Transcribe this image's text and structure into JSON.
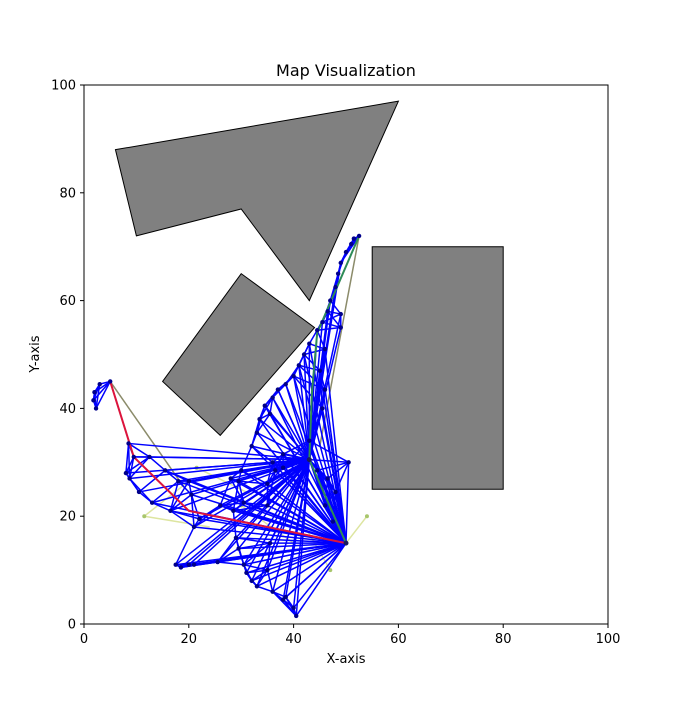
{
  "chart_data": {
    "type": "scatter",
    "title": "Map Visualization",
    "xlabel": "X-axis",
    "ylabel": "Y-axis",
    "xlim": [
      0,
      100
    ],
    "ylim": [
      0,
      100
    ],
    "xticks": [
      "0",
      "20",
      "40",
      "60",
      "80",
      "100"
    ],
    "yticks": [
      "0",
      "20",
      "40",
      "60",
      "80",
      "100"
    ],
    "grid": false,
    "colors": {
      "obstacle_fill": "#808080",
      "obstacle_edge": "#000000",
      "tree_edge": "#0000ff",
      "tree_node": "#00008b",
      "path_a": "#dc143c",
      "path_b": "#2e8b57",
      "faint_edge": "#dde5a0",
      "olive_edge": "#8b8b6a"
    },
    "obstacles": [
      {
        "name": "triangle",
        "points": [
          [
            6,
            88
          ],
          [
            60,
            97
          ],
          [
            43,
            60
          ],
          [
            30,
            77
          ],
          [
            10,
            72
          ]
        ]
      },
      {
        "name": "rotated-rectangle",
        "points": [
          [
            15,
            45
          ],
          [
            30,
            65
          ],
          [
            44,
            55
          ],
          [
            26,
            35
          ]
        ]
      },
      {
        "name": "rectangle",
        "points": [
          [
            55,
            25
          ],
          [
            80,
            25
          ],
          [
            80,
            70
          ],
          [
            55,
            70
          ]
        ]
      }
    ],
    "roots": [
      [
        50,
        15
      ],
      [
        43,
        30.5
      ]
    ],
    "tree_nodes": [
      [
        5,
        45
      ],
      [
        2,
        43
      ],
      [
        1.8,
        41.5
      ],
      [
        2.3,
        40
      ],
      [
        3,
        44.5
      ],
      [
        8.5,
        33.5
      ],
      [
        9.5,
        31
      ],
      [
        8,
        28
      ],
      [
        8.7,
        27
      ],
      [
        10.5,
        24.5
      ],
      [
        12.5,
        31
      ],
      [
        15.5,
        28.5
      ],
      [
        13,
        22.5
      ],
      [
        16.5,
        21
      ],
      [
        18,
        26.5
      ],
      [
        20,
        26.5
      ],
      [
        20.5,
        24
      ],
      [
        22,
        19.5
      ],
      [
        21,
        18
      ],
      [
        17.5,
        11
      ],
      [
        18.5,
        10.5
      ],
      [
        20,
        11
      ],
      [
        21,
        11
      ],
      [
        25.5,
        11.5
      ],
      [
        26,
        22
      ],
      [
        28,
        27
      ],
      [
        29.5,
        26.5
      ],
      [
        28.5,
        21
      ],
      [
        30,
        28.5
      ],
      [
        30.5,
        22.5
      ],
      [
        29,
        16
      ],
      [
        29.5,
        14
      ],
      [
        30.5,
        11
      ],
      [
        31,
        9.5
      ],
      [
        32,
        8
      ],
      [
        33,
        7
      ],
      [
        35,
        10
      ],
      [
        35.5,
        15
      ],
      [
        35,
        22
      ],
      [
        35,
        26
      ],
      [
        36,
        30
      ],
      [
        36.5,
        28.5
      ],
      [
        38,
        29
      ],
      [
        38.5,
        5
      ],
      [
        40,
        3
      ],
      [
        40.5,
        1.5
      ],
      [
        38,
        4.5
      ],
      [
        36,
        6
      ],
      [
        32,
        33
      ],
      [
        33,
        35.5
      ],
      [
        33.5,
        38
      ],
      [
        34.5,
        40.5
      ],
      [
        35.5,
        39
      ],
      [
        36,
        42
      ],
      [
        37,
        43.5
      ],
      [
        38.5,
        44.5
      ],
      [
        40,
        46
      ],
      [
        41,
        48
      ],
      [
        42,
        50
      ],
      [
        43,
        52
      ],
      [
        44.5,
        54.5
      ],
      [
        45.5,
        56
      ],
      [
        46.5,
        58
      ],
      [
        47,
        60
      ],
      [
        48,
        62.5
      ],
      [
        48.5,
        65
      ],
      [
        49,
        67
      ],
      [
        50,
        69
      ],
      [
        51,
        70.5
      ],
      [
        51.5,
        71.5
      ],
      [
        52.5,
        72
      ],
      [
        49,
        57.5
      ],
      [
        49,
        55
      ],
      [
        46,
        51
      ],
      [
        45,
        47
      ],
      [
        46,
        43.5
      ],
      [
        45.5,
        40
      ],
      [
        43,
        34
      ],
      [
        38,
        31.5
      ],
      [
        50.5,
        30
      ],
      [
        44.5,
        28.5
      ],
      [
        46.5,
        27
      ],
      [
        48,
        24.5
      ],
      [
        46,
        22
      ],
      [
        47.5,
        19
      ]
    ],
    "faint_nodes": [
      [
        11.5,
        20
      ],
      [
        21.5,
        29
      ],
      [
        54,
        20
      ],
      [
        47,
        10
      ],
      [
        30,
        22
      ]
    ],
    "path_red": [
      [
        5,
        45
      ],
      [
        9.5,
        31
      ],
      [
        20,
        21
      ],
      [
        50,
        15
      ]
    ],
    "path_green": [
      [
        52.5,
        72
      ],
      [
        44.5,
        54
      ],
      [
        43.5,
        43
      ],
      [
        43,
        30.5
      ],
      [
        50,
        15
      ]
    ],
    "olive_edges": [
      [
        [
          5,
          45
        ],
        [
          19,
          25.5
        ]
      ],
      [
        [
          52.5,
          72
        ],
        [
          45,
          33
        ]
      ]
    ],
    "faint_edges": [
      [
        [
          11.5,
          20
        ],
        [
          20,
          26.5
        ]
      ],
      [
        [
          21.5,
          29
        ],
        [
          32,
          24
        ]
      ],
      [
        [
          54,
          20
        ],
        [
          50,
          15
        ]
      ],
      [
        [
          47,
          10
        ],
        [
          41,
          20
        ]
      ],
      [
        [
          30,
          22
        ],
        [
          40,
          15
        ]
      ],
      [
        [
          11.5,
          20
        ],
        [
          24,
          18
        ]
      ]
    ]
  }
}
